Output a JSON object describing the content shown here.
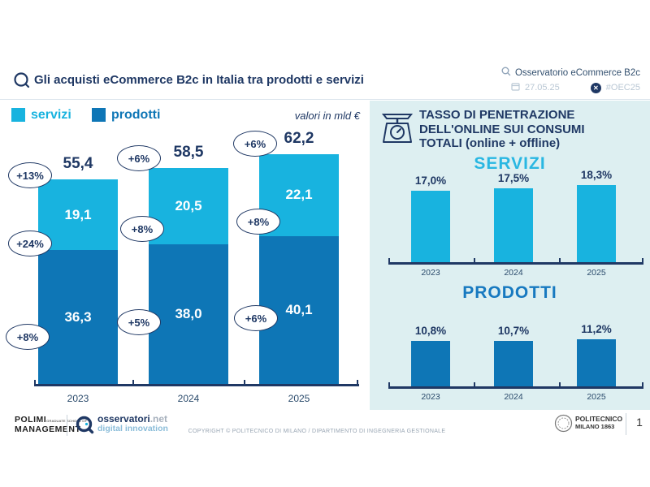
{
  "header": {
    "title": "Gli acquisti eCommerce B2c in Italia tra prodotti e servizi",
    "observatory": "Osservatorio eCommerce B2c",
    "date": "27.05.25",
    "hashtag": "#OEC25"
  },
  "legend": {
    "servizi": "servizi",
    "prodotti": "prodotti",
    "note": "valori in mld €"
  },
  "right_panel": {
    "title_line1": "TASSO DI PENETRAZIONE",
    "title_line2": "DELL'ONLINE SUI CONSUMI",
    "title_line3": "TOTALI (online + offline)",
    "servizi_title": "SERVIZI",
    "prodotti_title": "PRODOTTI"
  },
  "footer": {
    "polimi_line1": "POLIMI",
    "polimi_sub": "GRADUATE SCHOOL OF",
    "polimi_line2": "MANAGEMENT",
    "osservatori_name": "osservatori",
    "osservatori_net": ".net",
    "osservatori_sub": "digital innovation",
    "copyright": "COPYRIGHT © POLITECNICO DI MILANO / DIPARTIMENTO DI INGEGNERIA GESTIONALE",
    "politecnico_line1": "POLITECNICO",
    "politecnico_line2": "MILANO 1863",
    "page_number": "1"
  },
  "colors": {
    "servizi": "#18b3df",
    "prodotti": "#0e76b6",
    "navy": "#1f3864",
    "panel_bg": "#ddeff1"
  },
  "chart_data": [
    {
      "type": "bar",
      "stacked": true,
      "title": "Gli acquisti eCommerce B2c in Italia tra prodotti e servizi",
      "unit": "valori in mld €",
      "categories": [
        "2023",
        "2024",
        "2025"
      ],
      "series": [
        {
          "name": "prodotti",
          "color": "#0e76b6",
          "values": [
            36.3,
            38.0,
            40.1
          ],
          "labels": [
            "36,3",
            "38,0",
            "40,1"
          ],
          "growth": [
            "+8%",
            "+5%",
            "+6%"
          ]
        },
        {
          "name": "servizi",
          "color": "#18b3df",
          "values": [
            19.1,
            20.5,
            22.1
          ],
          "labels": [
            "19,1",
            "20,5",
            "22,1"
          ],
          "growth": [
            "+24%",
            "+8%",
            "+8%"
          ]
        }
      ],
      "totals": {
        "values": [
          55.4,
          58.5,
          62.2
        ],
        "labels": [
          "55,4",
          "58,5",
          "62,2"
        ],
        "growth": [
          "+13%",
          "+6%",
          "+6%"
        ]
      },
      "xlabel": "",
      "ylabel": "",
      "ylim": [
        0,
        70
      ],
      "grid": false,
      "legend_position": "top-left",
      "legend": [
        "servizi",
        "prodotti"
      ]
    },
    {
      "type": "bar",
      "title": "SERVIZI",
      "categories": [
        "2023",
        "2024",
        "2025"
      ],
      "values": [
        17.0,
        17.5,
        18.3
      ],
      "labels": [
        "17,0%",
        "17,5%",
        "18,3%"
      ],
      "color": "#18b3df",
      "xlabel": "",
      "ylabel": "",
      "ylim": [
        0,
        20
      ],
      "grid": false
    },
    {
      "type": "bar",
      "title": "PRODOTTI",
      "categories": [
        "2023",
        "2024",
        "2025"
      ],
      "values": [
        10.8,
        10.7,
        11.2
      ],
      "labels": [
        "10,8%",
        "10,7%",
        "11,2%"
      ],
      "color": "#0e76b6",
      "xlabel": "",
      "ylabel": "",
      "ylim": [
        0,
        20
      ],
      "grid": false
    }
  ]
}
